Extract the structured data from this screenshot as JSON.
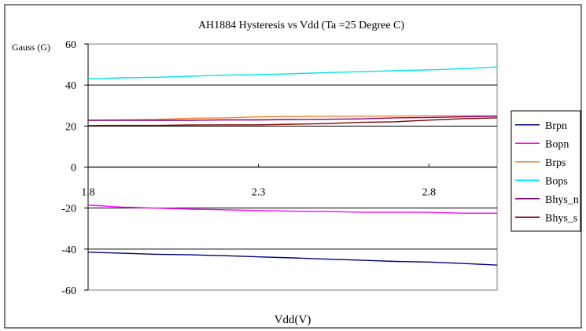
{
  "chart_data": {
    "type": "line",
    "title": "AH1884 Hysteresis vs Vdd    (Ta =25 Degree C)",
    "xlabel": "Vdd(V)",
    "ylabel": "Gauss (G)",
    "xlim": [
      1.8,
      3.0
    ],
    "ylim": [
      -60,
      60
    ],
    "yticks": [
      -60,
      -40,
      -20,
      0,
      20,
      40,
      60
    ],
    "ytick_labels": [
      "-60",
      "-40",
      "-20",
      "0",
      "20",
      "40",
      "60"
    ],
    "xticks": [
      1.8,
      2.3,
      2.8
    ],
    "xtick_labels": [
      "1.8",
      "2.3",
      "2.8"
    ],
    "x_axis_crosses_y_at": 0,
    "grid": "horizontal",
    "legend_position": "right",
    "x": [
      1.8,
      1.9,
      2.0,
      2.1,
      2.2,
      2.3,
      2.4,
      2.5,
      2.6,
      2.7,
      2.8,
      2.9,
      3.0
    ],
    "series": [
      {
        "name": "Brpn",
        "color": "#000080",
        "values": [
          -41.5,
          -42,
          -42.5,
          -42.8,
          -43.2,
          -43.8,
          -44.3,
          -44.9,
          -45.4,
          -46,
          -46.3,
          -47,
          -47.8
        ]
      },
      {
        "name": "Bopn",
        "color": "#ff00ff",
        "values": [
          -18.5,
          -19.5,
          -20,
          -20.5,
          -20.8,
          -21.2,
          -21.5,
          -21.6,
          -22,
          -22,
          -22.1,
          -22.5,
          -22.5
        ]
      },
      {
        "name": "Brps",
        "color": "#ff7f27",
        "values": [
          22.8,
          23,
          23.2,
          23.8,
          24,
          24.5,
          24.7,
          24.8,
          24.8,
          24.9,
          25,
          25,
          25
        ]
      },
      {
        "name": "Bops",
        "color": "#00e5e5",
        "values": [
          43,
          43.5,
          43.8,
          44.3,
          44.8,
          45.1,
          45.5,
          46.1,
          46.5,
          47,
          47.4,
          48,
          48.8
        ]
      },
      {
        "name": "Bhys_n",
        "color": "#800080",
        "values": [
          22.8,
          22.8,
          22.8,
          22.8,
          23,
          23,
          23.2,
          23.3,
          23.5,
          24,
          24.2,
          24.5,
          24.8
        ]
      },
      {
        "name": "Bhys_s",
        "color": "#800000",
        "values": [
          20.2,
          20.3,
          20.3,
          20.5,
          20.6,
          20.6,
          20.9,
          21.2,
          21.8,
          22.1,
          22.9,
          23.6,
          24
        ]
      }
    ]
  }
}
